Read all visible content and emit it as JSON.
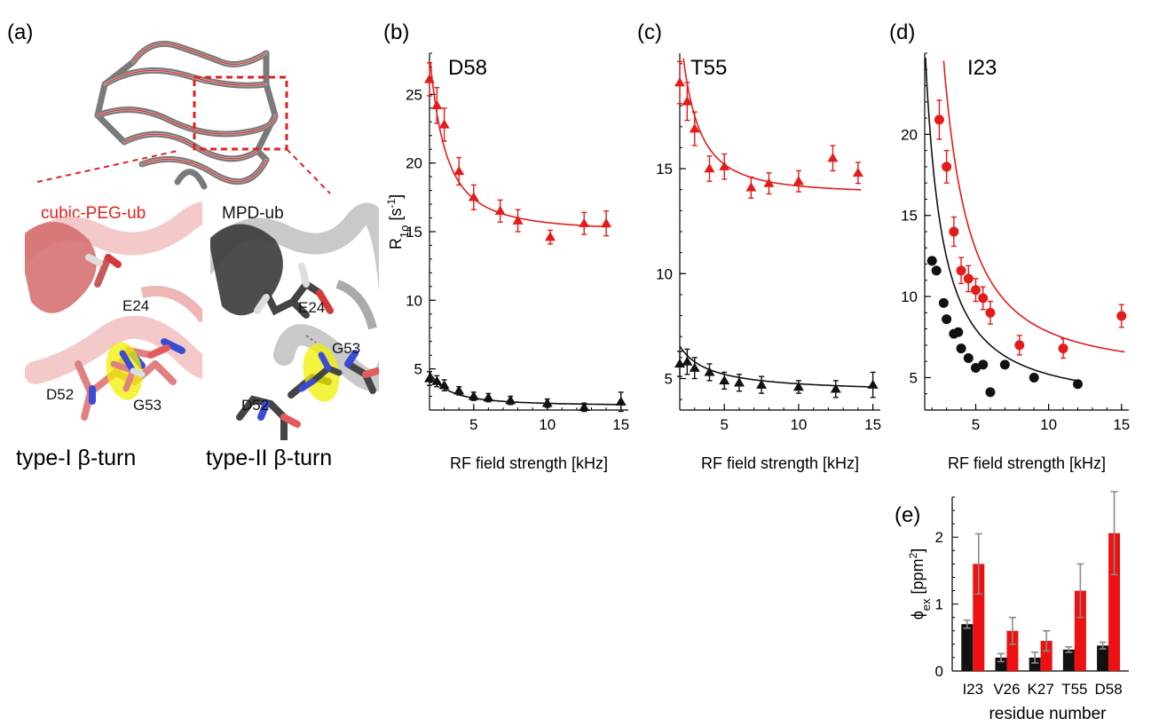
{
  "panel_a": {
    "label": "(a)",
    "left_title": "cubic-PEG-ub",
    "right_title": "MPD-ub",
    "left_caption": "type-I β-turn",
    "right_caption": "type-II β-turn",
    "labels_left": {
      "e24": "E24",
      "d52": "D52",
      "g53": "G53"
    },
    "labels_right": {
      "e24": "E24",
      "d52": "D52",
      "g53": "G53"
    },
    "colors": {
      "cubic": "#e07d7d",
      "mpd": "#555555",
      "highlight": "#f0f000",
      "box": "#e02020"
    }
  },
  "shared": {
    "xlabel": "RF field strength [kHz]",
    "ylabel_main": "R",
    "ylabel_sub": "1ρ",
    "ylabel_unit": " [s",
    "ylabel_exp": "-1",
    "ylabel_close": "]"
  },
  "chart_data": [
    {
      "panel": "(b)",
      "type": "scatter",
      "title": "D58",
      "marker": "triangle",
      "xlim": [
        2,
        15.5
      ],
      "ylim": [
        2,
        28
      ],
      "xticks": [
        5,
        10,
        15
      ],
      "yticks": [
        5,
        10,
        15,
        20,
        25
      ],
      "has_ylabel": true,
      "series": [
        {
          "color": "#e21b1b",
          "x": [
            2.0,
            2.5,
            3.0,
            4.0,
            5.0,
            6.8,
            8.0,
            10.2,
            12.5,
            14.0
          ],
          "y": [
            26.1,
            24.2,
            22.8,
            19.4,
            17.5,
            16.5,
            15.8,
            14.6,
            15.6,
            15.6
          ],
          "err": [
            1.2,
            1.3,
            1.2,
            1.0,
            0.9,
            0.8,
            0.8,
            0.5,
            0.8,
            0.9
          ],
          "fit": {
            "a": 15.0,
            "b": 47.0,
            "p": 1.85
          }
        },
        {
          "color": "#111111",
          "x": [
            2.0,
            2.5,
            3.0,
            4.0,
            5.0,
            6.0,
            7.5,
            10.0,
            12.5,
            15.0
          ],
          "y": [
            4.3,
            4.1,
            3.8,
            3.4,
            3.0,
            2.9,
            2.7,
            2.5,
            2.2,
            2.6
          ],
          "err": [
            0.5,
            0.4,
            0.4,
            0.3,
            0.3,
            0.3,
            0.3,
            0.3,
            0.3,
            0.7
          ],
          "fit": {
            "a": 2.3,
            "b": 7.5,
            "p": 1.6
          }
        }
      ]
    },
    {
      "panel": "(c)",
      "type": "scatter",
      "title": "T55",
      "marker": "triangle",
      "xlim": [
        2,
        15.5
      ],
      "ylim": [
        3.5,
        20.5
      ],
      "xticks": [
        5,
        10,
        15
      ],
      "yticks": [
        5,
        10,
        15
      ],
      "has_ylabel": false,
      "series": [
        {
          "color": "#e21b1b",
          "x": [
            2.0,
            2.5,
            3.0,
            4.0,
            5.0,
            6.8,
            8.0,
            10.0,
            12.3,
            14.0
          ],
          "y": [
            19.1,
            18.2,
            16.9,
            15.0,
            15.1,
            14.1,
            14.3,
            14.4,
            15.5,
            14.8
          ],
          "err": [
            1.0,
            0.9,
            0.8,
            0.6,
            0.6,
            0.5,
            0.5,
            0.5,
            0.6,
            0.5
          ],
          "fit": {
            "a": 13.8,
            "b": 30.0,
            "p": 1.9
          }
        },
        {
          "color": "#111111",
          "x": [
            2.0,
            2.5,
            3.0,
            4.0,
            5.0,
            6.0,
            7.5,
            10.0,
            12.5,
            15.0
          ],
          "y": [
            5.7,
            5.8,
            5.5,
            5.3,
            4.9,
            4.8,
            4.7,
            4.6,
            4.5,
            4.7
          ],
          "err": [
            0.6,
            0.6,
            0.5,
            0.4,
            0.4,
            0.4,
            0.4,
            0.3,
            0.4,
            0.6
          ],
          "fit": {
            "a": 4.3,
            "b": 4.5,
            "p": 1.0
          }
        }
      ]
    },
    {
      "panel": "(d)",
      "type": "scatter",
      "title": "I23",
      "marker": "circle",
      "xlim": [
        1.5,
        15.5
      ],
      "ylim": [
        3,
        25
      ],
      "xticks": [
        5,
        10,
        15
      ],
      "yticks": [
        5,
        10,
        15,
        20
      ],
      "has_ylabel": false,
      "series": [
        {
          "color": "#e21b1b",
          "x": [
            2.5,
            3.0,
            3.5,
            4.0,
            4.5,
            5.0,
            5.5,
            6.0,
            8.0,
            11.0,
            15.0
          ],
          "y": [
            20.9,
            18.0,
            14.0,
            11.6,
            11.1,
            10.4,
            9.9,
            9.0,
            7.0,
            6.8,
            8.8
          ],
          "err": [
            1.2,
            1.0,
            0.9,
            0.8,
            0.8,
            0.7,
            0.7,
            0.7,
            0.6,
            0.6,
            0.7
          ],
          "fit": {
            "a": 5.3,
            "b": 100.0,
            "p": 1.6
          }
        },
        {
          "color": "#111111",
          "x": [
            2.0,
            2.3,
            2.8,
            3.0,
            3.5,
            3.8,
            4.0,
            4.5,
            5.0,
            5.5,
            6.0,
            7.0,
            9.0,
            12.0
          ],
          "y": [
            12.2,
            11.6,
            9.6,
            8.6,
            7.7,
            7.8,
            6.8,
            6.2,
            5.6,
            5.8,
            4.1,
            5.8,
            5.0,
            4.6
          ],
          "err": [
            0.2,
            0.2,
            0.2,
            0.2,
            0.2,
            0.2,
            0.2,
            0.2,
            0.2,
            0.2,
            0.2,
            0.2,
            0.2,
            0.2
          ],
          "fit": {
            "a": 3.3,
            "b": 38.0,
            "p": 1.3
          }
        }
      ]
    },
    {
      "panel": "(e)",
      "type": "bar",
      "categories": [
        "I23",
        "V26",
        "K27",
        "T55",
        "D58"
      ],
      "xlabel": "residue number",
      "ylabel_main": "ϕ",
      "ylabel_sub": "ex",
      "ylabel_unit": " [ppm",
      "ylabel_exp": "2",
      "ylabel_close": "]",
      "ylim": [
        0,
        2.6
      ],
      "yticks": [
        0,
        1,
        2
      ],
      "series": [
        {
          "color": "#111111",
          "values": [
            0.7,
            0.2,
            0.2,
            0.32,
            0.38
          ],
          "err": [
            0.06,
            0.06,
            0.08,
            0.04,
            0.05
          ]
        },
        {
          "color": "#ee1111",
          "values": [
            1.6,
            0.6,
            0.45,
            1.2,
            2.06
          ],
          "err": [
            0.45,
            0.2,
            0.15,
            0.4,
            0.62
          ]
        }
      ]
    }
  ]
}
